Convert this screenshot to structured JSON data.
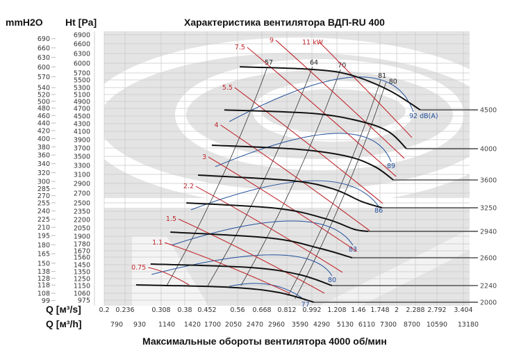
{
  "chart_data": {
    "type": "line",
    "title": "Характеристика вентилятора ВДП-RU 400",
    "footer": "Максимальные обороты вентилятора 4000 об/мин",
    "xlabel": "Q [м³/s]",
    "xlabel2": "Q [м³/h]",
    "ylabel": "Ht [Pa]",
    "ylabel2": "mmH2O",
    "grid": true,
    "x_ticks": [
      "0.2",
      "0.236",
      "0.308",
      "0.38",
      "0.452",
      "0.56",
      "0.668",
      "0.812",
      "0.992",
      "1.208",
      "1.46",
      "1.748",
      "2",
      "2.288",
      "2.792",
      "3.404"
    ],
    "x2_ticks": [
      "790",
      "930",
      "1140",
      "1420",
      "1700",
      "2050",
      "2470",
      "2960",
      "3590",
      "4290",
      "5130",
      "6110",
      "7300",
      "8700",
      "10590",
      "13180"
    ],
    "y_ticks": [
      "6900",
      "6600",
      "6300",
      "6000",
      "5700",
      "5500",
      "5300",
      "5100",
      "4900",
      "4700",
      "4500",
      "4300",
      "4100",
      "3900",
      "3700",
      "3500",
      "3300",
      "3100",
      "2900",
      "2700",
      "2500",
      "2350",
      "2200",
      "2050",
      "1900",
      "1780",
      "1670",
      "1560",
      "1450",
      "1350",
      "1250",
      "1150",
      "1060",
      "975"
    ],
    "y2_ticks": [
      "690",
      "660",
      "630",
      "600",
      "570",
      "540",
      "520",
      "500",
      "480",
      "460",
      "440",
      "420",
      "400",
      "380",
      "360",
      "340",
      "320",
      "300",
      "285",
      "270",
      "255",
      "240",
      "225",
      "210",
      "195",
      "180",
      "165",
      "150",
      "138",
      "128",
      "118",
      "108",
      "99"
    ],
    "fan_curves": [
      {
        "rpm": "4500",
        "points": [
          [
            0.57,
            5890
          ],
          [
            0.995,
            5810
          ],
          [
            1.37,
            5640
          ],
          [
            1.885,
            5220
          ],
          [
            2.4,
            4660
          ]
        ]
      },
      {
        "rpm": "4000",
        "points": [
          [
            0.513,
            4660
          ],
          [
            0.995,
            4570
          ],
          [
            1.5,
            4355
          ],
          [
            1.885,
            4083
          ],
          [
            2.15,
            3683
          ]
        ]
      },
      {
        "rpm": "3600",
        "points": [
          [
            0.469,
            3767
          ],
          [
            0.897,
            3667
          ],
          [
            1.33,
            3500
          ],
          [
            1.68,
            3270
          ],
          [
            1.95,
            2977
          ]
        ]
      },
      {
        "rpm": "3250",
        "points": [
          [
            0.423,
            3085
          ],
          [
            0.85,
            2960
          ],
          [
            1.178,
            2785
          ],
          [
            1.5,
            2530
          ],
          [
            1.78,
            2412
          ]
        ]
      },
      {
        "rpm": "2940",
        "points": [
          [
            0.385,
            2500
          ],
          [
            0.76,
            2400
          ],
          [
            1.118,
            2210
          ],
          [
            1.41,
            2025
          ],
          [
            1.59,
            1988
          ]
        ]
      },
      {
        "rpm": "2600",
        "points": [
          [
            0.336,
            1975
          ],
          [
            0.72,
            1870
          ],
          [
            1.058,
            1710
          ],
          [
            1.387,
            1550
          ]
        ]
      },
      {
        "rpm": "2240",
        "points": [
          [
            0.287,
            1460
          ],
          [
            0.616,
            1410
          ],
          [
            0.897,
            1310
          ],
          [
            1.166,
            1150
          ]
        ]
      },
      {
        "rpm": "2000",
        "points": [
          [
            0.258,
            1160
          ],
          [
            0.531,
            1130
          ],
          [
            0.76,
            1070
          ],
          [
            1.01,
            950
          ]
        ]
      }
    ],
    "power_lines": [
      {
        "label": "0.75",
        "points": [
          [
            0.282,
            1410
          ],
          [
            0.394,
            1160
          ]
        ]
      },
      {
        "label": "1.1",
        "points": [
          [
            0.319,
            1800
          ],
          [
            0.832,
            1060
          ]
        ]
      },
      {
        "label": "1.5",
        "points": [
          [
            0.361,
            2210
          ],
          [
            1.1,
            1060
          ]
        ]
      },
      {
        "label": "2.2",
        "points": [
          [
            0.416,
            2840
          ],
          [
            1.273,
            1340
          ]
        ]
      },
      {
        "label": "3",
        "points": [
          [
            0.457,
            3485
          ],
          [
            1.44,
            1660
          ]
        ]
      },
      {
        "label": "4",
        "points": [
          [
            0.5,
            4265
          ],
          [
            1.61,
            2000
          ]
        ]
      },
      {
        "label": "5.5",
        "points": [
          [
            0.55,
            5300
          ],
          [
            1.79,
            2490
          ]
        ]
      },
      {
        "label": "7.5",
        "points": [
          [
            0.603,
            6490
          ],
          [
            1.99,
            3055
          ]
        ]
      },
      {
        "label": "9",
        "points": [
          [
            0.748,
            6720
          ],
          [
            2.117,
            3455
          ]
        ]
      },
      {
        "label": "11 kW",
        "points": [
          [
            1.058,
            6650
          ],
          [
            2.235,
            3950
          ]
        ]
      }
    ],
    "efficiency_lines": [
      {
        "label": "57",
        "points": [
          [
            0.325,
            1150
          ],
          [
            0.7,
            5890
          ]
        ]
      },
      {
        "label": "64",
        "points": [
          [
            0.455,
            1150
          ],
          [
            0.998,
            5890
          ]
        ]
      },
      {
        "label": "70",
        "points": [
          [
            0.575,
            1150
          ],
          [
            1.25,
            5810
          ]
        ]
      },
      {
        "label": "81",
        "points": [
          [
            0.82,
            1030
          ],
          [
            1.76,
            5500
          ]
        ]
      },
      {
        "label": "80",
        "points": [
          [
            0.87,
            990
          ],
          [
            1.84,
            5440
          ]
        ]
      }
    ],
    "noise_curves": [
      {
        "label": "92 dB(A)",
        "points": [
          [
            0.531,
            4355
          ],
          [
            1.41,
            5580
          ],
          [
            2.256,
            4610
          ]
        ]
      },
      {
        "label": "89",
        "points": [
          [
            0.481,
            3270
          ],
          [
            1.195,
            4050
          ],
          [
            1.916,
            3380
          ]
        ]
      },
      {
        "label": "86",
        "points": [
          [
            0.4,
            2375
          ],
          [
            0.998,
            2960
          ],
          [
            1.73,
            2437
          ]
        ]
      },
      {
        "label": "83",
        "points": [
          [
            0.34,
            1760
          ],
          [
            0.847,
            2175
          ],
          [
            1.395,
            1760
          ]
        ]
      },
      {
        "label": "80",
        "points": [
          [
            0.289,
            1310
          ],
          [
            0.74,
            1600
          ],
          [
            1.166,
            1290
          ]
        ]
      },
      {
        "label": "77",
        "points": [
          [
            0.531,
            1140
          ],
          [
            0.72,
            1160
          ],
          [
            0.945,
            970
          ]
        ]
      }
    ],
    "colors": {
      "fan": "#111111",
      "power": "#c0272d",
      "efficiency": "#333333",
      "noise": "#1f4e9a",
      "grid": "#c8c8c8",
      "plot_bg": "#e4e4e4",
      "rpm_line": "#555555"
    }
  }
}
